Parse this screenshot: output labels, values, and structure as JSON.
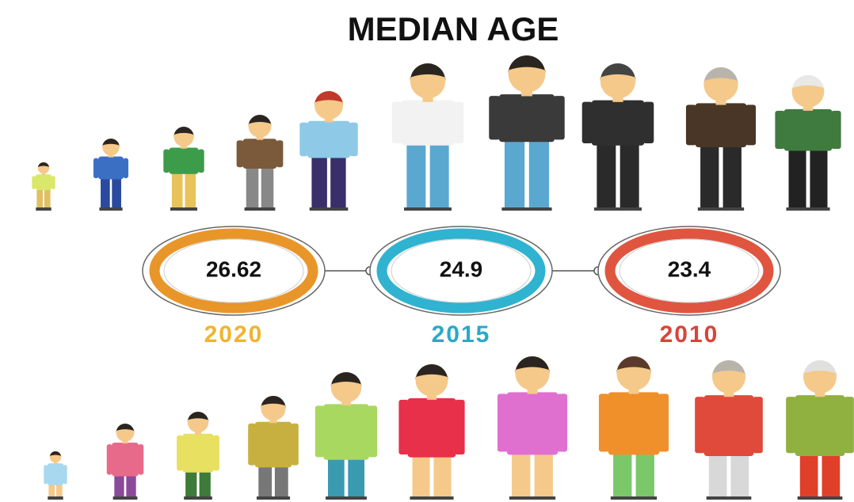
{
  "title": "MEDIAN AGE",
  "items": [
    {
      "value": "26.62",
      "year": "2020",
      "ring_color": "#e8962a",
      "year_color": "#f0b431"
    },
    {
      "value": "24.9",
      "year": "2015",
      "ring_color": "#2fb3d0",
      "year_color": "#2aa9c9"
    },
    {
      "value": "23.4",
      "year": "2010",
      "ring_color": "#e0553f",
      "year_color": "#d9443a"
    }
  ]
}
